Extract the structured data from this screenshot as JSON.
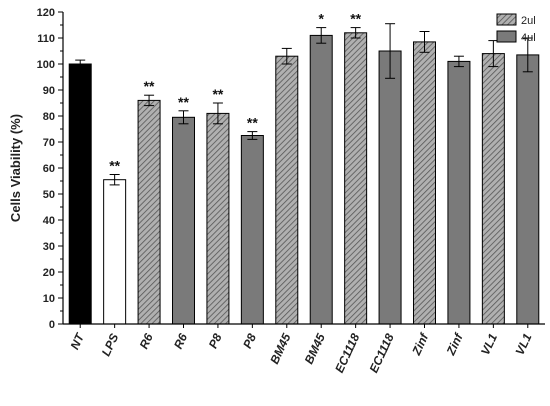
{
  "chart_data": {
    "type": "bar",
    "ylabel": "Cells Viability (%)",
    "xlabel": "",
    "ylim": [
      0,
      120
    ],
    "yticks": [
      0,
      10,
      20,
      30,
      40,
      50,
      60,
      70,
      80,
      90,
      100,
      110,
      120
    ],
    "legend_position": "top-right",
    "legend": [
      {
        "name": "2ul",
        "pattern": "hatched"
      },
      {
        "name": "4ul",
        "pattern": "solid-gray"
      }
    ],
    "categories": [
      "NT",
      "LPS",
      "R6",
      "R6",
      "P8",
      "P8",
      "BM45",
      "BM45",
      "EC1118",
      "EC1118",
      "Zinf",
      "Zinf",
      "VL1",
      "VL1"
    ],
    "values": [
      100,
      55.5,
      86,
      79.5,
      81,
      72.5,
      103,
      111,
      112,
      105,
      108.5,
      101,
      104,
      103.5
    ],
    "errors": [
      1.5,
      2,
      2,
      2.5,
      4,
      1.5,
      3,
      3,
      2,
      10.5,
      4,
      2,
      5,
      6.5
    ],
    "significance": [
      "",
      "**",
      "**",
      "**",
      "**",
      "**",
      "",
      "*",
      "**",
      "",
      "",
      "",
      "",
      ""
    ],
    "fill": [
      "black",
      "white",
      "hatched",
      "gray",
      "hatched",
      "gray",
      "hatched",
      "gray",
      "hatched",
      "gray",
      "hatched",
      "gray",
      "hatched",
      "gray"
    ],
    "colors": {
      "black": "#000000",
      "white": "#ffffff",
      "gray": "#7a7a7a",
      "hatch_bg": "#b0b0b0",
      "hatch_line": "#555555"
    }
  }
}
